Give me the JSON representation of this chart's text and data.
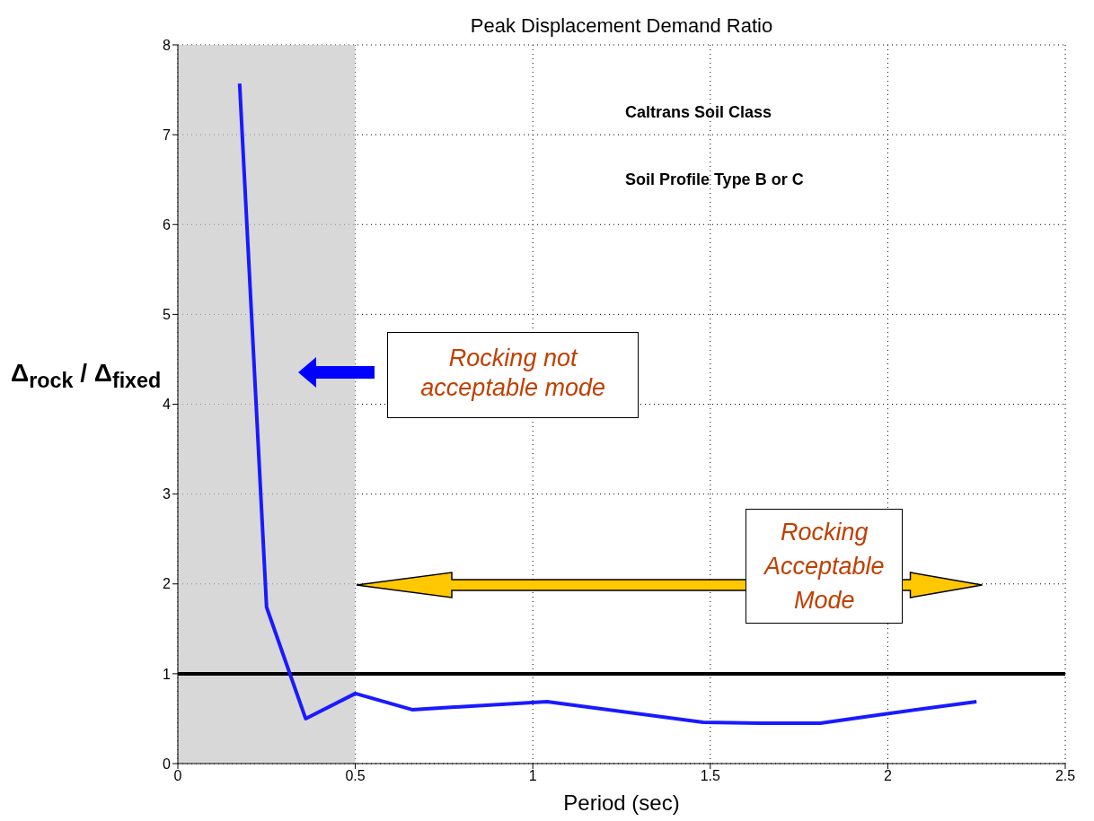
{
  "chart_data": {
    "type": "line",
    "title": "Peak Displacement Demand Ratio",
    "xlabel": "Period (sec)",
    "ylabel": "Δ$_{rock}$ / Δ$_{fixed}$",
    "x": [
      0.174,
      0.25,
      0.36,
      0.5,
      0.66,
      1.04,
      1.48,
      1.64,
      1.81,
      1.97,
      2.25
    ],
    "series": [
      {
        "color": "#1a1aff",
        "values": [
          7.57,
          1.74,
          0.5,
          0.78,
          0.6,
          0.69,
          0.46,
          0.45,
          0.45,
          0.54,
          0.69
        ]
      }
    ],
    "xlim": [
      0,
      2.5
    ],
    "xticks": [
      0,
      0.5,
      1,
      1.5,
      2,
      2.5
    ],
    "ylim": [
      0,
      8
    ],
    "yticks": [
      0,
      1,
      2,
      3,
      4,
      5,
      6,
      7,
      8
    ],
    "ref_lines": [
      {
        "axis": "y",
        "value": 1,
        "color": "#000000"
      }
    ],
    "bands": [
      {
        "axis": "x",
        "from": 0,
        "to": 0.5,
        "color": "#c8c8c8"
      }
    ],
    "annotations": [
      "Caltrans Soil Class",
      "Soil Profile Type B or C",
      "Rocking not acceptable mode",
      "Rocking Acceptable Mode"
    ],
    "grid": true,
    "legend": false,
    "marker": "none",
    "line_style": "solid"
  }
}
